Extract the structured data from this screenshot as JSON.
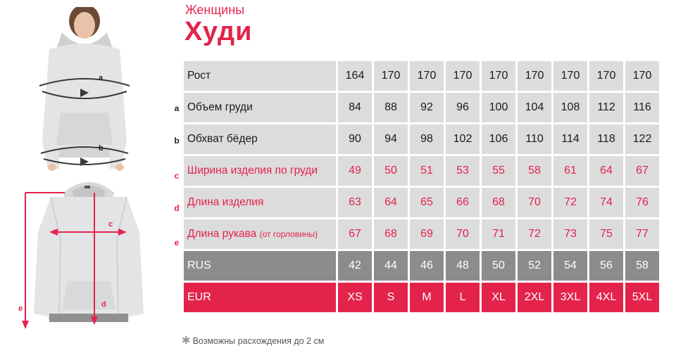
{
  "header": {
    "subtitle": "Женщины",
    "title": "Худи"
  },
  "markers": [
    "a",
    "b",
    "c",
    "d",
    "e"
  ],
  "table": {
    "rows": [
      {
        "label": "Рост",
        "values": [
          "164",
          "170",
          "170",
          "170",
          "170",
          "170",
          "170",
          "170",
          "170"
        ]
      },
      {
        "label": "Объем груди",
        "values": [
          "84",
          "88",
          "92",
          "96",
          "100",
          "104",
          "108",
          "112",
          "116"
        ]
      },
      {
        "label": "Обхват бёдер",
        "values": [
          "90",
          "94",
          "98",
          "102",
          "106",
          "110",
          "114",
          "118",
          "122"
        ]
      },
      {
        "label": "Ширина изделия по груди",
        "values": [
          "49",
          "50",
          "51",
          "53",
          "55",
          "58",
          "61",
          "64",
          "67"
        ]
      },
      {
        "label": "Длина изделия",
        "values": [
          "63",
          "64",
          "65",
          "66",
          "68",
          "70",
          "72",
          "74",
          "76"
        ]
      },
      {
        "label": "Длина рукава",
        "label_note": "(от горловины)",
        "values": [
          "67",
          "68",
          "69",
          "70",
          "71",
          "72",
          "73",
          "75",
          "77"
        ]
      },
      {
        "label": "RUS",
        "values": [
          "42",
          "44",
          "46",
          "48",
          "50",
          "52",
          "54",
          "56",
          "58"
        ]
      },
      {
        "label": "EUR",
        "values": [
          "XS",
          "S",
          "M",
          "L",
          "XL",
          "2XL",
          "3XL",
          "4XL",
          "5XL"
        ]
      }
    ]
  },
  "footnote": "Возможны расхождения до 2 см",
  "colors": {
    "accent": "#e4234b",
    "row_light": "#dcdcdd",
    "row_dark": "#8c8c8e"
  }
}
